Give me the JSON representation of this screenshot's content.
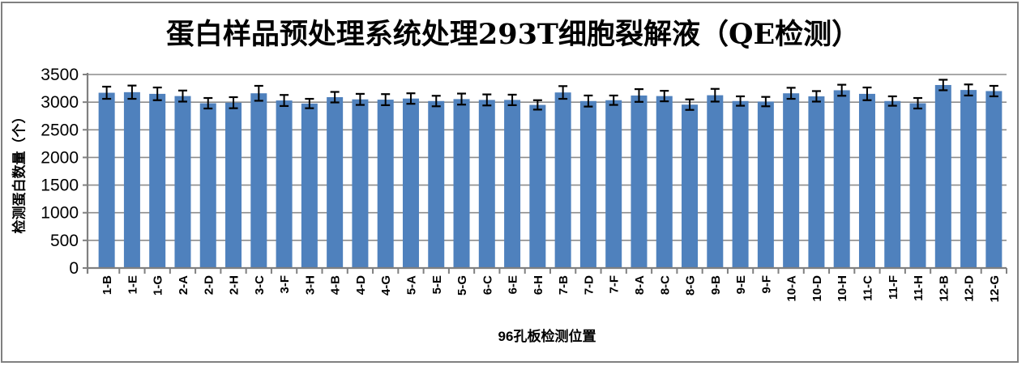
{
  "chart_data": {
    "type": "bar",
    "title": "蛋白样品预处理系统处理293T细胞裂解液（QE检测）",
    "xlabel": "96孔板检测位置",
    "ylabel": "检测蛋白数量（个）",
    "ylim": [
      0,
      3500
    ],
    "yticks": [
      0,
      500,
      1000,
      1500,
      2000,
      2500,
      3000,
      3500
    ],
    "grid": true,
    "legend": false,
    "error_bars": true,
    "categories": [
      "1-B",
      "1-E",
      "1-G",
      "2-A",
      "2-D",
      "2-H",
      "3-C",
      "3-F",
      "3-H",
      "4-B",
      "4-D",
      "4-G",
      "5-A",
      "5-E",
      "5-G",
      "6-C",
      "6-E",
      "6-H",
      "7-B",
      "7-D",
      "7-F",
      "8-A",
      "8-C",
      "8-G",
      "9-B",
      "9-E",
      "9-F",
      "10-A",
      "10-D",
      "10-H",
      "11-C",
      "11-F",
      "11-H",
      "12-B",
      "12-D",
      "12-G"
    ],
    "values": [
      3170,
      3180,
      3150,
      3110,
      2980,
      2990,
      3160,
      3030,
      2975,
      3090,
      3050,
      3045,
      3065,
      3020,
      3055,
      3040,
      3040,
      2950,
      3175,
      3020,
      3035,
      3120,
      3110,
      2955,
      3125,
      3020,
      3010,
      3160,
      3105,
      3215,
      3150,
      3020,
      2980,
      3310,
      3220,
      3200
    ],
    "errors": [
      110,
      120,
      115,
      100,
      95,
      100,
      135,
      100,
      85,
      95,
      100,
      100,
      95,
      95,
      100,
      100,
      95,
      85,
      115,
      100,
      85,
      115,
      95,
      95,
      115,
      85,
      85,
      100,
      95,
      100,
      115,
      85,
      95,
      95,
      100,
      95
    ],
    "colors": {
      "bar": "#4F81BD",
      "gridline": "#8C8C8C",
      "axis": "#808080",
      "error_bar": "#000000",
      "text": "#000000",
      "frame_border": "#808080",
      "background": "#FFFFFF"
    }
  }
}
